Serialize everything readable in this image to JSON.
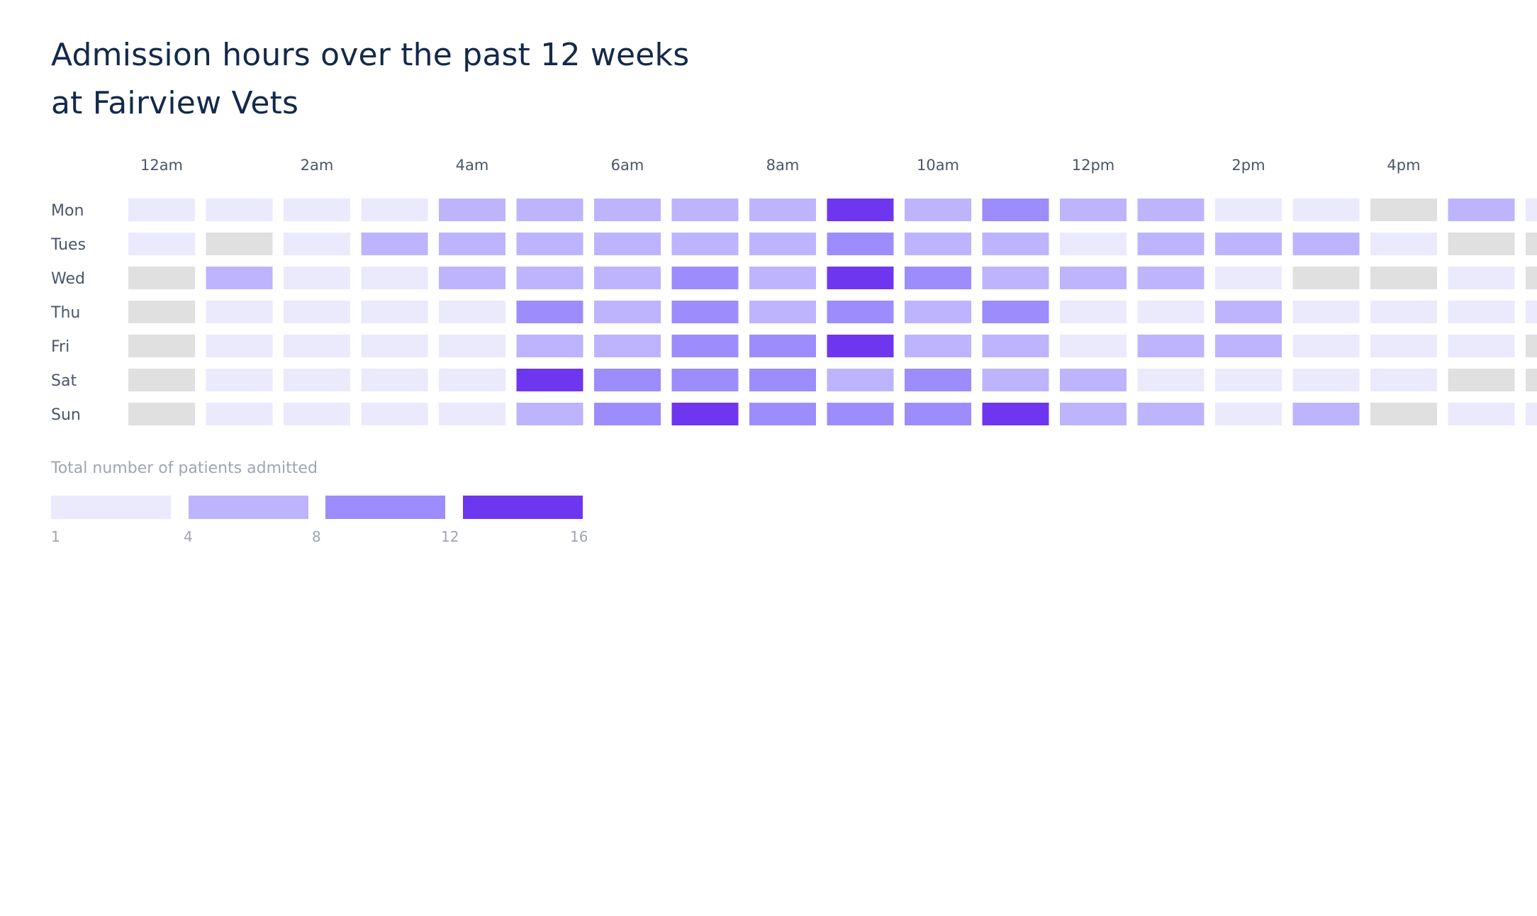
{
  "title_lines": [
    "Admission hours over the past 12 weeks",
    "at Fairview Vets"
  ],
  "colors": {
    "no_data": "#e0e0e0",
    "bucket_1_4": "#ebe9fc",
    "bucket_4_8": "#bdb4fd",
    "bucket_8_12": "#9d8cfb",
    "bucket_12_16": "#6e36ef",
    "text_dark": "#13294b",
    "text_axis": "#4a5568",
    "text_muted": "#a0a5ad"
  },
  "chart_data": {
    "type": "heatmap",
    "title": "Admission hours over the past 12 weeks at Fairview Vets",
    "x_tick_labels": [
      "12am",
      "2am",
      "4am",
      "6am",
      "8am",
      "10am",
      "12pm",
      "2pm",
      "4pm"
    ],
    "y_categories": [
      "Mon",
      "Tues",
      "Wed",
      "Thu",
      "Fri",
      "Sat",
      "Sun"
    ],
    "visible_hour_columns": 19,
    "value_encoding": "0 = no data (grey); 1 = 1-4; 2 = 4-8; 3 = 8-12; 4 = 12-16 patients",
    "values": [
      [
        1,
        1,
        1,
        1,
        2,
        2,
        2,
        2,
        2,
        4,
        2,
        3,
        2,
        2,
        1,
        1,
        0,
        2,
        1
      ],
      [
        1,
        0,
        1,
        2,
        2,
        2,
        2,
        2,
        2,
        3,
        2,
        2,
        1,
        2,
        2,
        2,
        1,
        0,
        0
      ],
      [
        0,
        2,
        1,
        1,
        2,
        2,
        2,
        3,
        2,
        4,
        3,
        2,
        2,
        2,
        1,
        0,
        0,
        1,
        0
      ],
      [
        0,
        1,
        1,
        1,
        1,
        3,
        2,
        3,
        2,
        3,
        2,
        3,
        1,
        1,
        2,
        1,
        1,
        1,
        1
      ],
      [
        0,
        1,
        1,
        1,
        1,
        2,
        2,
        3,
        3,
        4,
        2,
        2,
        1,
        2,
        2,
        1,
        1,
        1,
        0
      ],
      [
        0,
        1,
        1,
        1,
        1,
        4,
        3,
        3,
        3,
        2,
        3,
        2,
        2,
        1,
        1,
        1,
        1,
        0,
        0
      ],
      [
        0,
        1,
        1,
        1,
        1,
        2,
        3,
        4,
        3,
        3,
        3,
        4,
        2,
        2,
        1,
        2,
        0,
        1,
        1
      ]
    ],
    "legend": {
      "title": "Total number of patients admitted",
      "ticks": [
        "1",
        "4",
        "8",
        "12",
        "16"
      ]
    }
  }
}
